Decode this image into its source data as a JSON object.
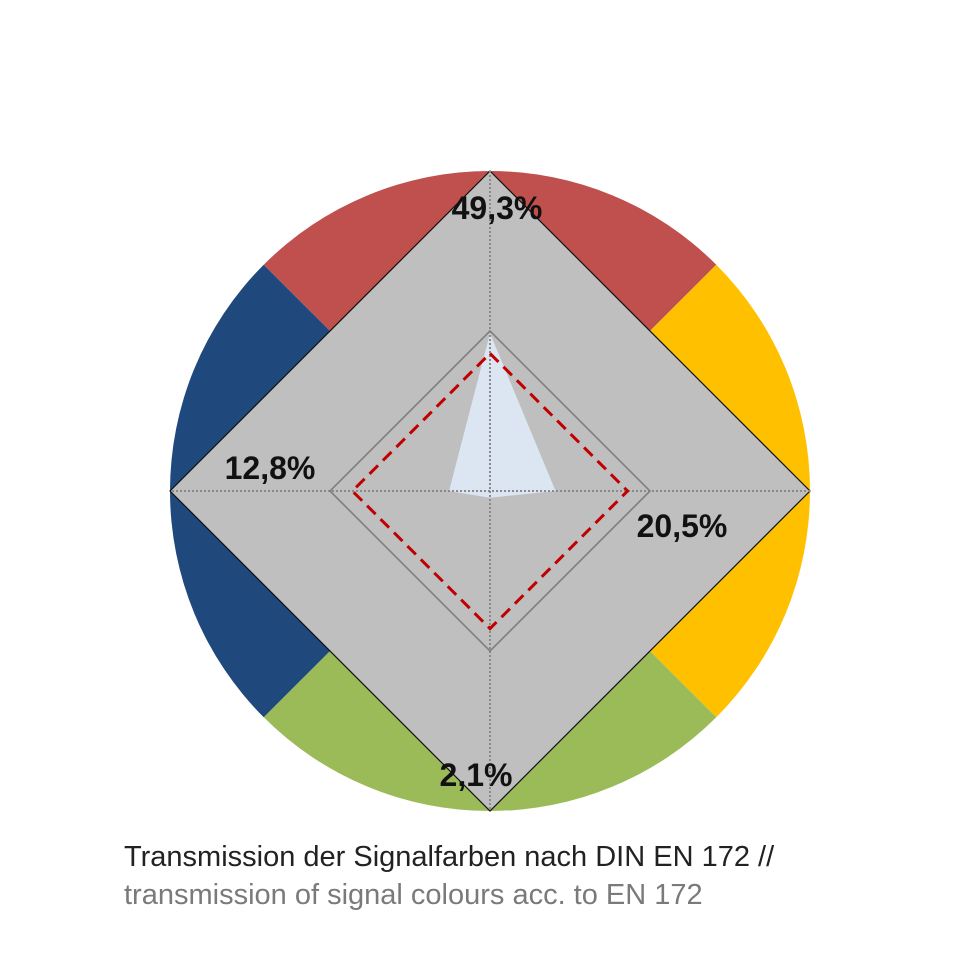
{
  "caption": {
    "line1": "Transmission der Signalfarben nach DIN EN 172 //",
    "line2": "transmission of signal colours acc. to EN 172"
  },
  "chart_data": {
    "type": "radar",
    "axes": [
      "red",
      "yellow",
      "green",
      "blue"
    ],
    "max": 100,
    "series": [
      {
        "values": [
          49.3,
          20.5,
          2.1,
          12.8
        ],
        "color": "#dce6f2"
      }
    ],
    "reference_values": [
      50,
      50,
      50,
      50
    ],
    "threshold_values": [
      43,
      43,
      43,
      43
    ],
    "value_labels": [
      "49,3%",
      "20,5%",
      "2,1%",
      "12,8%"
    ],
    "sector_colors": {
      "red": "#c0504d",
      "yellow": "#ffc000",
      "green": "#9bbb59",
      "blue": "#1f497d"
    },
    "diamond_color": "#bfbfbf",
    "dashed_color": "#c00000"
  }
}
